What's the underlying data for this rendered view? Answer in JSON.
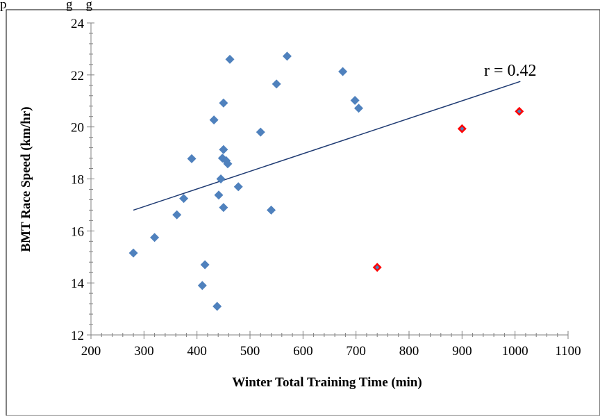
{
  "colors": {
    "marker": "#4f81bd",
    "highlight_outline": "#ff0000",
    "trendline": "#1f3b73",
    "axis": "#808080"
  },
  "header_fragment": "p                  g    g",
  "chart_data": {
    "type": "scatter",
    "title": "",
    "xlabel": "Winter Total Training Time (min)",
    "ylabel": "BMT Race Speed (km/hr)",
    "xlim": [
      200,
      1100
    ],
    "ylim": [
      12,
      24
    ],
    "x_ticks": [
      200,
      300,
      400,
      500,
      600,
      700,
      800,
      900,
      1000,
      1100
    ],
    "y_ticks": [
      12,
      14,
      16,
      18,
      20,
      22,
      24
    ],
    "grid": false,
    "legend": "none",
    "series": [
      {
        "marker": "diamond",
        "x": [
          280,
          320,
          362,
          375,
          390,
          410,
          415,
          432,
          438,
          441,
          445,
          448,
          450,
          450,
          450,
          455,
          458,
          462,
          478,
          520,
          540,
          550,
          570,
          675,
          698,
          705
        ],
        "y": [
          15.15,
          15.75,
          16.62,
          17.25,
          18.78,
          13.9,
          14.7,
          20.27,
          13.1,
          17.38,
          18.0,
          18.8,
          19.13,
          20.92,
          16.9,
          18.7,
          18.58,
          22.6,
          17.7,
          19.8,
          16.8,
          21.65,
          22.72,
          22.13,
          21.02,
          20.72
        ]
      },
      {
        "marker": "diamond-red-outline",
        "x": [
          740,
          900,
          1008
        ],
        "y": [
          14.6,
          19.93,
          20.6
        ]
      }
    ],
    "trendline": {
      "x": [
        280,
        1010
      ],
      "y": [
        16.8,
        21.75
      ]
    },
    "annotations": [
      "r = 0.42"
    ]
  }
}
